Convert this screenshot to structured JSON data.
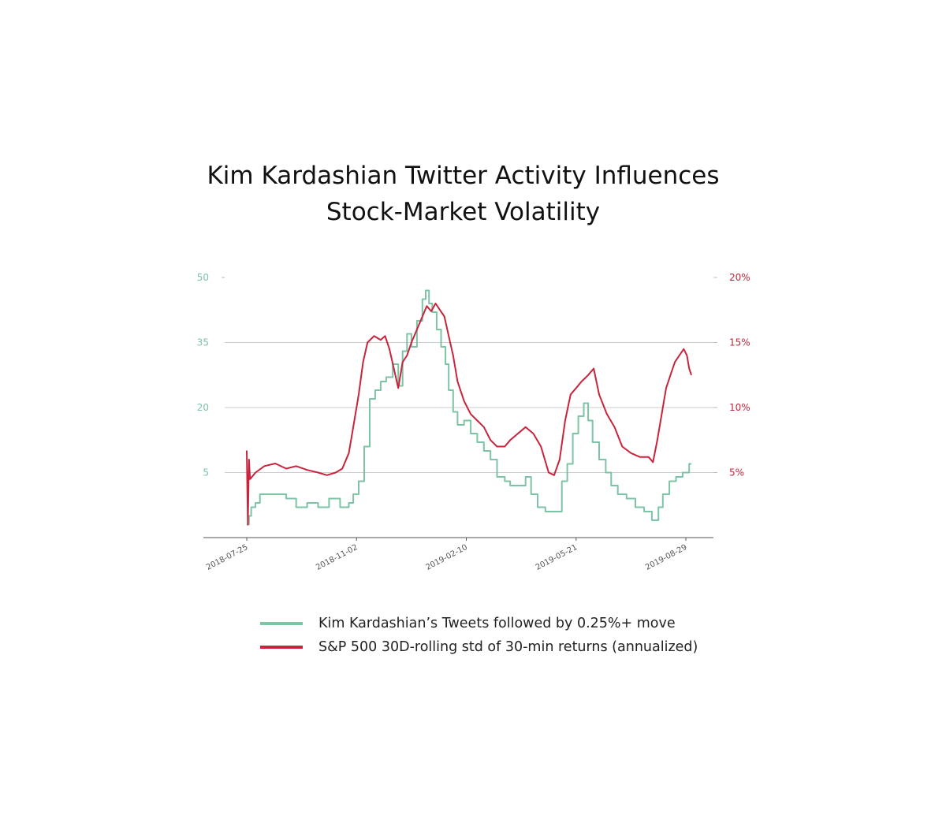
{
  "chart_data": {
    "type": "line",
    "title": [
      "Kim Kardashian Twitter Activity Influences",
      "Stock-Market Volatility"
    ],
    "xlabel": "",
    "ylabel_left": "",
    "ylabel_right": "",
    "x_tick_labels": [
      "2018-07-25",
      "2018-11-02",
      "2019-02-10",
      "2019-05-21",
      "2019-08-29"
    ],
    "x_range": [
      "2018-07-25",
      "2019-09-03"
    ],
    "y_left": {
      "range": [
        -10,
        50
      ],
      "ticks": [
        5,
        20,
        35,
        50
      ],
      "tick_labels": [
        "5",
        "20",
        "35",
        "50"
      ],
      "color": "#7cc4a4"
    },
    "y_right": {
      "range": [
        0.0,
        0.2
      ],
      "ticks": [
        0.05,
        0.1,
        0.15,
        0.2
      ],
      "tick_labels": [
        "5%",
        "10%",
        "15%",
        "20%"
      ],
      "color": "#c8243c"
    },
    "grid": {
      "horizontal": true,
      "vertical": false,
      "color": "#cccccc"
    },
    "legend": {
      "position": "bottom",
      "entries": [
        {
          "label": "Kim Kardashian’s Tweets followed by 0.25%+ move",
          "color": "#7cc4a4"
        },
        {
          "label": "S&P 500 30D-rolling std of 30-min returns (annualized)",
          "color": "#c8243c"
        }
      ]
    },
    "series": [
      {
        "name": "Kim Kardashian’s Tweets followed by 0.25%+ move",
        "axis": "left",
        "color": "#7cc4a4",
        "step": true,
        "x": [
          "2018-07-25",
          "2018-07-27",
          "2018-07-29",
          "2018-08-02",
          "2018-08-06",
          "2018-08-20",
          "2018-08-30",
          "2018-09-08",
          "2018-09-18",
          "2018-09-28",
          "2018-10-08",
          "2018-10-18",
          "2018-10-26",
          "2018-10-30",
          "2018-11-04",
          "2018-11-09",
          "2018-11-14",
          "2018-11-19",
          "2018-11-24",
          "2018-11-29",
          "2018-12-05",
          "2018-12-10",
          "2018-12-14",
          "2018-12-18",
          "2018-12-22",
          "2018-12-27",
          "2019-01-01",
          "2019-01-04",
          "2019-01-07",
          "2019-01-10",
          "2019-01-14",
          "2019-01-18",
          "2019-01-22",
          "2019-01-25",
          "2019-01-29",
          "2019-02-02",
          "2019-02-08",
          "2019-02-14",
          "2019-02-20",
          "2019-02-26",
          "2019-03-04",
          "2019-03-10",
          "2019-03-17",
          "2019-03-22",
          "2019-03-29",
          "2019-04-05",
          "2019-04-10",
          "2019-04-16",
          "2019-04-23",
          "2019-04-30",
          "2019-05-08",
          "2019-05-13",
          "2019-05-18",
          "2019-05-23",
          "2019-05-28",
          "2019-06-01",
          "2019-06-05",
          "2019-06-11",
          "2019-06-17",
          "2019-06-22",
          "2019-06-28",
          "2019-07-06",
          "2019-07-14",
          "2019-07-22",
          "2019-07-29",
          "2019-08-04",
          "2019-08-08",
          "2019-08-14",
          "2019-08-20",
          "2019-08-26",
          "2019-09-01",
          "2019-09-03"
        ],
        "values": [
          -7,
          -5,
          -3,
          -2,
          0,
          0,
          -1,
          -3,
          -2,
          -3,
          -1,
          -3,
          -2,
          0,
          3,
          11,
          22,
          24,
          26,
          27,
          30,
          25,
          33,
          37,
          34,
          40,
          45,
          47,
          44,
          42,
          38,
          34,
          30,
          24,
          19,
          16,
          17,
          14,
          12,
          10,
          8,
          4,
          3,
          2,
          2,
          4,
          0,
          -3,
          -4,
          -4,
          3,
          7,
          14,
          18,
          21,
          17,
          12,
          8,
          5,
          2,
          0,
          -1,
          -3,
          -4,
          -6,
          -3,
          0,
          3,
          4,
          5,
          7,
          7
        ]
      },
      {
        "name": "S&P 500 30D-rolling std of 30-min returns (annualized)",
        "axis": "right",
        "color": "#c8243c",
        "step": false,
        "x": [
          "2018-07-25",
          "2018-07-26",
          "2018-07-27",
          "2018-07-28",
          "2018-08-02",
          "2018-08-10",
          "2018-08-20",
          "2018-08-30",
          "2018-09-08",
          "2018-09-18",
          "2018-09-28",
          "2018-10-06",
          "2018-10-14",
          "2018-10-20",
          "2018-10-26",
          "2018-10-30",
          "2018-11-04",
          "2018-11-08",
          "2018-11-12",
          "2018-11-18",
          "2018-11-24",
          "2018-11-28",
          "2018-12-02",
          "2018-12-06",
          "2018-12-10",
          "2018-12-14",
          "2018-12-18",
          "2018-12-22",
          "2018-12-27",
          "2019-01-01",
          "2019-01-05",
          "2019-01-09",
          "2019-01-13",
          "2019-01-17",
          "2019-01-21",
          "2019-01-25",
          "2019-01-29",
          "2019-02-02",
          "2019-02-08",
          "2019-02-14",
          "2019-02-20",
          "2019-02-26",
          "2019-03-04",
          "2019-03-10",
          "2019-03-17",
          "2019-03-22",
          "2019-03-29",
          "2019-04-05",
          "2019-04-12",
          "2019-04-19",
          "2019-04-26",
          "2019-05-01",
          "2019-05-06",
          "2019-05-11",
          "2019-05-16",
          "2019-05-21",
          "2019-05-26",
          "2019-06-01",
          "2019-06-06",
          "2019-06-11",
          "2019-06-18",
          "2019-06-25",
          "2019-07-02",
          "2019-07-10",
          "2019-07-18",
          "2019-07-26",
          "2019-07-30",
          "2019-08-03",
          "2019-08-07",
          "2019-08-11",
          "2019-08-15",
          "2019-08-19",
          "2019-08-23",
          "2019-08-27",
          "2019-08-30",
          "2019-09-01",
          "2019-09-03"
        ],
        "values": [
          0.067,
          0.01,
          0.06,
          0.045,
          0.05,
          0.055,
          0.057,
          0.053,
          0.055,
          0.052,
          0.05,
          0.048,
          0.05,
          0.053,
          0.065,
          0.085,
          0.11,
          0.135,
          0.15,
          0.155,
          0.152,
          0.155,
          0.145,
          0.13,
          0.115,
          0.135,
          0.14,
          0.15,
          0.16,
          0.17,
          0.178,
          0.174,
          0.18,
          0.175,
          0.17,
          0.155,
          0.14,
          0.12,
          0.105,
          0.095,
          0.09,
          0.085,
          0.075,
          0.07,
          0.07,
          0.075,
          0.08,
          0.085,
          0.08,
          0.07,
          0.05,
          0.048,
          0.06,
          0.09,
          0.11,
          0.115,
          0.12,
          0.125,
          0.13,
          0.11,
          0.095,
          0.085,
          0.07,
          0.065,
          0.062,
          0.062,
          0.058,
          0.075,
          0.095,
          0.115,
          0.125,
          0.135,
          0.14,
          0.145,
          0.14,
          0.13,
          0.125
        ]
      }
    ]
  }
}
